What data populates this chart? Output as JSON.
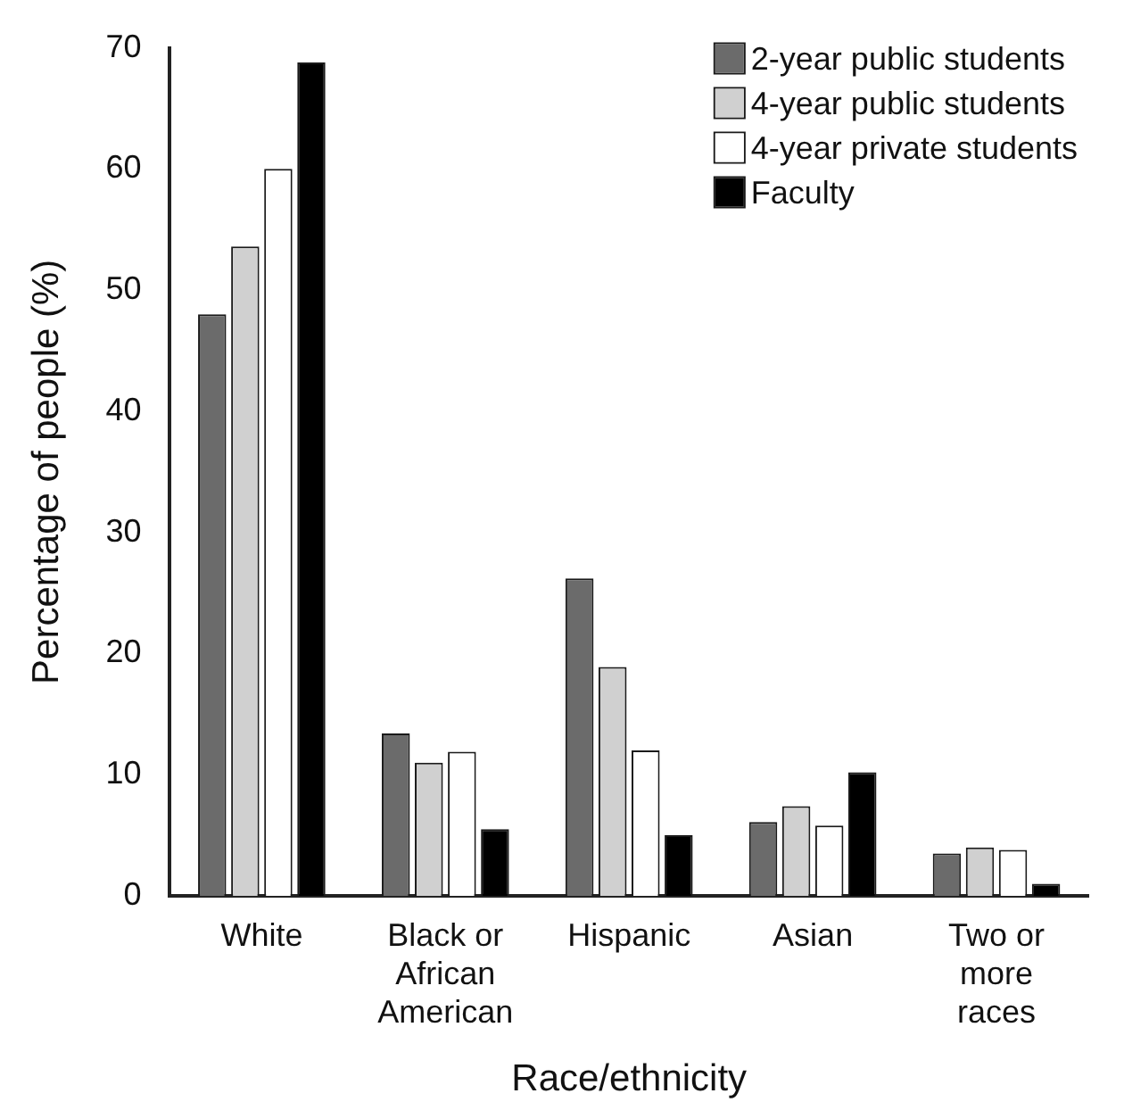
{
  "chart_data": {
    "type": "bar",
    "xlabel": "Race/ethnicity",
    "ylabel": "Percentage of people (%)",
    "categories": [
      "White",
      "Black or African American",
      "Hispanic",
      "Asian",
      "Two or more races"
    ],
    "series": [
      {
        "name": "2-year public students",
        "color": "#6b6b6b",
        "values": [
          48,
          13.4,
          26.2,
          6.1,
          3.5
        ]
      },
      {
        "name": "4-year public students",
        "color": "#d0d0d0",
        "values": [
          53.6,
          11,
          18.9,
          7.4,
          4
        ]
      },
      {
        "name": "4-year private students",
        "color": "#ffffff",
        "values": [
          60,
          11.9,
          12,
          5.8,
          3.8
        ]
      },
      {
        "name": "Faculty",
        "color": "#000000",
        "values": [
          68.8,
          5.5,
          5,
          10.2,
          1
        ]
      }
    ],
    "ylim": [
      0,
      70
    ],
    "yticks": [
      0,
      10,
      20,
      30,
      40,
      50,
      60,
      70
    ],
    "grid": false,
    "legend": "top right"
  }
}
